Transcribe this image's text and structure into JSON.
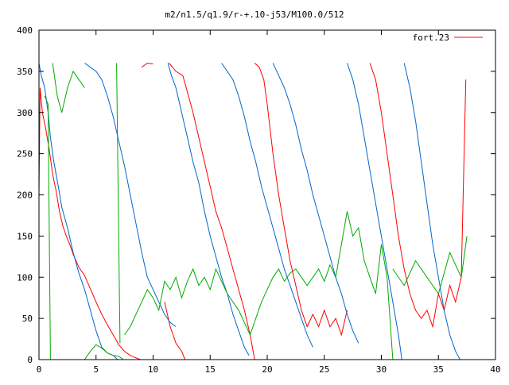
{
  "chart_data": {
    "type": "line",
    "title": "m2/n1.5/q1.9/r-+.10-j53/M100.0/512",
    "xlabel": "",
    "ylabel": "",
    "xlim": [
      0,
      40
    ],
    "ylim": [
      0,
      400
    ],
    "x_ticks": [
      0,
      5,
      10,
      15,
      20,
      25,
      30,
      35,
      40
    ],
    "y_ticks": [
      0,
      50,
      100,
      150,
      200,
      250,
      300,
      350,
      400
    ],
    "x_tick_labels": [
      "0",
      "5",
      "10",
      "15",
      "20",
      "25",
      "30",
      "35",
      "40"
    ],
    "y_tick_labels": [
      "0",
      "50",
      "100",
      "150",
      "200",
      "250",
      "300",
      "350",
      "400"
    ],
    "grid": false,
    "legend_position": "top-right",
    "series": [
      {
        "name": "fort.23",
        "color": "#ff0000",
        "shown_in_legend": true,
        "segments": [
          [
            [
              0.0,
              200
            ],
            [
              0.1,
              330
            ],
            [
              0.3,
              300
            ],
            [
              0.6,
              280
            ],
            [
              0.9,
              255
            ],
            [
              1.2,
              225
            ],
            [
              1.5,
              205
            ],
            [
              1.8,
              180
            ],
            [
              2.1,
              162
            ],
            [
              2.4,
              150
            ],
            [
              2.7,
              140
            ],
            [
              3.0,
              128
            ],
            [
              3.5,
              112
            ],
            [
              4.0,
              102
            ],
            [
              4.5,
              86
            ],
            [
              5.0,
              70
            ],
            [
              5.5,
              55
            ],
            [
              6.0,
              42
            ],
            [
              6.5,
              30
            ],
            [
              7.0,
              18
            ],
            [
              7.5,
              10
            ],
            [
              8.0,
              5
            ],
            [
              8.5,
              2
            ],
            [
              8.9,
              0
            ]
          ],
          [
            [
              9.0,
              355
            ],
            [
              9.5,
              360
            ],
            [
              10.0,
              359
            ]
          ],
          [
            [
              11.0,
              70
            ],
            [
              11.5,
              40
            ],
            [
              12.0,
              20
            ],
            [
              12.5,
              10
            ],
            [
              12.8,
              0
            ]
          ],
          [
            [
              11.4,
              360
            ],
            [
              12.0,
              350
            ],
            [
              12.6,
              345
            ],
            [
              13.0,
              325
            ],
            [
              13.5,
              300
            ],
            [
              14.0,
              270
            ],
            [
              14.5,
              240
            ],
            [
              15.0,
              210
            ],
            [
              15.5,
              180
            ],
            [
              16.0,
              160
            ],
            [
              16.5,
              135
            ],
            [
              17.0,
              110
            ],
            [
              17.5,
              85
            ],
            [
              18.0,
              60
            ],
            [
              18.5,
              30
            ],
            [
              18.9,
              0
            ]
          ],
          [
            [
              18.9,
              360
            ],
            [
              19.3,
              355
            ],
            [
              19.7,
              340
            ],
            [
              20.0,
              310
            ],
            [
              20.5,
              250
            ],
            [
              21.0,
              200
            ],
            [
              21.5,
              160
            ],
            [
              22.0,
              120
            ],
            [
              22.5,
              90
            ],
            [
              23.0,
              60
            ],
            [
              23.5,
              40
            ],
            [
              24.0,
              55
            ],
            [
              24.5,
              40
            ],
            [
              25.0,
              60
            ],
            [
              25.5,
              40
            ],
            [
              26.0,
              50
            ],
            [
              26.5,
              30
            ],
            [
              27.0,
              60
            ]
          ],
          [
            [
              29.0,
              360
            ],
            [
              29.5,
              340
            ],
            [
              30.0,
              300
            ],
            [
              30.5,
              250
            ],
            [
              31.0,
              200
            ],
            [
              31.5,
              150
            ],
            [
              32.0,
              110
            ],
            [
              32.5,
              80
            ],
            [
              33.0,
              60
            ],
            [
              33.5,
              50
            ],
            [
              34.0,
              60
            ],
            [
              34.5,
              40
            ],
            [
              35.0,
              80
            ],
            [
              35.5,
              60
            ],
            [
              36.0,
              90
            ],
            [
              36.5,
              70
            ],
            [
              37.0,
              100
            ],
            [
              37.4,
              340
            ]
          ]
        ]
      },
      {
        "name": "",
        "color": "#0066cc",
        "shown_in_legend": false,
        "segments": [
          [
            [
              0.0,
              360
            ],
            [
              0.2,
              345
            ],
            [
              0.5,
              330
            ],
            [
              0.8,
              300
            ],
            [
              1.0,
              270
            ],
            [
              1.3,
              240
            ],
            [
              1.7,
              210
            ],
            [
              2.0,
              185
            ],
            [
              2.5,
              160
            ],
            [
              3.0,
              130
            ],
            [
              3.5,
              105
            ],
            [
              4.0,
              85
            ],
            [
              4.5,
              60
            ],
            [
              5.0,
              35
            ],
            [
              5.5,
              15
            ],
            [
              6.0,
              8
            ],
            [
              6.5,
              5
            ],
            [
              6.9,
              0
            ]
          ],
          [
            [
              4.0,
              360
            ],
            [
              4.5,
              355
            ],
            [
              5.0,
              350
            ],
            [
              5.5,
              340
            ],
            [
              6.0,
              320
            ],
            [
              6.5,
              295
            ],
            [
              7.0,
              265
            ],
            [
              7.5,
              235
            ],
            [
              8.0,
              200
            ],
            [
              8.5,
              165
            ],
            [
              9.0,
              130
            ],
            [
              9.5,
              100
            ],
            [
              10.0,
              85
            ],
            [
              10.5,
              70
            ],
            [
              11.0,
              55
            ],
            [
              11.5,
              45
            ],
            [
              12.0,
              40
            ]
          ],
          [
            [
              11.3,
              360
            ],
            [
              11.6,
              345
            ],
            [
              12.0,
              330
            ],
            [
              12.5,
              300
            ],
            [
              13.0,
              270
            ],
            [
              13.5,
              240
            ],
            [
              14.0,
              215
            ],
            [
              14.5,
              180
            ],
            [
              15.0,
              150
            ],
            [
              15.5,
              125
            ],
            [
              16.0,
              100
            ],
            [
              16.5,
              80
            ],
            [
              17.0,
              55
            ],
            [
              17.5,
              35
            ],
            [
              18.0,
              15
            ],
            [
              18.4,
              5
            ]
          ],
          [
            [
              16.0,
              360
            ],
            [
              16.5,
              350
            ],
            [
              17.0,
              340
            ],
            [
              17.5,
              320
            ],
            [
              18.0,
              295
            ],
            [
              18.5,
              265
            ],
            [
              19.0,
              240
            ],
            [
              19.5,
              210
            ],
            [
              20.0,
              185
            ],
            [
              20.5,
              160
            ],
            [
              21.0,
              135
            ],
            [
              21.5,
              110
            ],
            [
              22.0,
              90
            ],
            [
              22.5,
              70
            ],
            [
              23.0,
              50
            ],
            [
              23.5,
              30
            ],
            [
              24.0,
              15
            ]
          ],
          [
            [
              20.5,
              360
            ],
            [
              21.0,
              345
            ],
            [
              21.5,
              330
            ],
            [
              22.0,
              310
            ],
            [
              22.5,
              285
            ],
            [
              23.0,
              255
            ],
            [
              23.5,
              230
            ],
            [
              24.0,
              200
            ],
            [
              24.5,
              175
            ],
            [
              25.0,
              150
            ],
            [
              25.5,
              125
            ],
            [
              26.0,
              100
            ],
            [
              26.5,
              80
            ],
            [
              27.0,
              55
            ],
            [
              27.5,
              35
            ],
            [
              28.0,
              20
            ]
          ],
          [
            [
              27.0,
              360
            ],
            [
              27.5,
              340
            ],
            [
              28.0,
              310
            ],
            [
              28.5,
              270
            ],
            [
              29.0,
              230
            ],
            [
              29.5,
              190
            ],
            [
              30.0,
              150
            ],
            [
              30.5,
              110
            ],
            [
              31.0,
              70
            ],
            [
              31.5,
              30
            ],
            [
              31.8,
              0
            ]
          ],
          [
            [
              32.0,
              360
            ],
            [
              32.5,
              330
            ],
            [
              33.0,
              290
            ],
            [
              33.5,
              240
            ],
            [
              34.0,
              190
            ],
            [
              34.5,
              140
            ],
            [
              35.0,
              100
            ],
            [
              35.5,
              60
            ],
            [
              36.0,
              30
            ],
            [
              36.5,
              10
            ],
            [
              36.9,
              0
            ]
          ]
        ]
      },
      {
        "name": "",
        "color": "#00aa00",
        "shown_in_legend": false,
        "segments": [
          [
            [
              0.5,
              320
            ],
            [
              0.8,
              310
            ],
            [
              1.0,
              0
            ]
          ],
          [
            [
              1.2,
              360
            ],
            [
              1.6,
              320
            ],
            [
              2.0,
              300
            ],
            [
              2.5,
              330
            ],
            [
              3.0,
              350
            ],
            [
              3.5,
              340
            ],
            [
              4.0,
              330
            ]
          ],
          [
            [
              4.0,
              0
            ],
            [
              4.5,
              10
            ],
            [
              5.0,
              18
            ],
            [
              5.5,
              14
            ],
            [
              6.0,
              8
            ],
            [
              6.5,
              5
            ],
            [
              7.0,
              4
            ],
            [
              7.4,
              0
            ]
          ],
          [
            [
              6.8,
              360
            ],
            [
              7.1,
              20
            ]
          ],
          [
            [
              7.5,
              30
            ],
            [
              8.0,
              40
            ],
            [
              8.5,
              55
            ],
            [
              9.0,
              70
            ],
            [
              9.5,
              85
            ],
            [
              10.0,
              75
            ],
            [
              10.5,
              60
            ],
            [
              11.0,
              95
            ],
            [
              11.5,
              85
            ],
            [
              12.0,
              100
            ],
            [
              12.5,
              75
            ],
            [
              13.0,
              95
            ],
            [
              13.5,
              110
            ],
            [
              14.0,
              90
            ],
            [
              14.5,
              100
            ],
            [
              15.0,
              85
            ],
            [
              15.5,
              110
            ],
            [
              16.0,
              95
            ],
            [
              16.5,
              80
            ],
            [
              17.0,
              70
            ],
            [
              17.5,
              60
            ],
            [
              18.0,
              45
            ],
            [
              18.5,
              30
            ],
            [
              19.0,
              50
            ],
            [
              19.5,
              70
            ],
            [
              20.0,
              85
            ],
            [
              20.5,
              100
            ],
            [
              21.0,
              110
            ],
            [
              21.5,
              95
            ],
            [
              22.0,
              105
            ],
            [
              22.5,
              110
            ],
            [
              23.0,
              100
            ],
            [
              23.5,
              90
            ],
            [
              24.0,
              100
            ],
            [
              24.5,
              110
            ],
            [
              25.0,
              95
            ],
            [
              25.5,
              115
            ],
            [
              26.0,
              100
            ],
            [
              26.5,
              140
            ],
            [
              27.0,
              180
            ],
            [
              27.5,
              150
            ],
            [
              28.0,
              160
            ],
            [
              28.5,
              120
            ],
            [
              29.0,
              100
            ],
            [
              29.5,
              80
            ],
            [
              30.0,
              140
            ],
            [
              30.5,
              100
            ],
            [
              31.0,
              0
            ]
          ],
          [
            [
              31.0,
              110
            ],
            [
              32.0,
              90
            ],
            [
              33.0,
              120
            ],
            [
              34.0,
              100
            ],
            [
              35.0,
              80
            ],
            [
              36.0,
              130
            ],
            [
              37.0,
              100
            ],
            [
              37.5,
              150
            ]
          ]
        ]
      }
    ]
  }
}
